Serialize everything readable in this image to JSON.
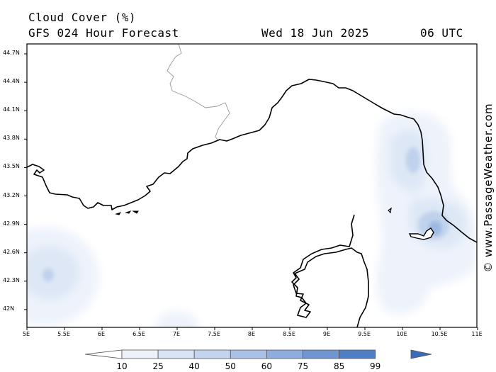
{
  "header": {
    "title": "Cloud Cover (%)",
    "subtitle": "GFS 024 Hour Forecast",
    "date": "Wed 18 Jun 2025",
    "time": "06 UTC"
  },
  "credit": "© www.PassageWeather.com",
  "map": {
    "lat_labels": [
      "44.7N",
      "44.4N",
      "44.1N",
      "43.8N",
      "43.5N",
      "43.2N",
      "42.9N",
      "42.6N",
      "42.3N",
      "42N"
    ],
    "lon_labels": [
      "5E",
      "5.5E",
      "6E",
      "6.5E",
      "7E",
      "7.5E",
      "8E",
      "8.5E",
      "9E",
      "9.5E",
      "10E",
      "10.5E",
      "11E"
    ],
    "land_color": "#ffffff",
    "coast_color": "#000000",
    "border_color": "#999999"
  },
  "legend": {
    "labels": [
      "10",
      "25",
      "40",
      "50",
      "60",
      "75",
      "85",
      "99"
    ],
    "colors": [
      "#ffffff",
      "#edf2fa",
      "#d9e4f4",
      "#c3d4ee",
      "#a9c1e6",
      "#8eadde",
      "#6f95d3",
      "#4f7ec6",
      "#3d6bb8"
    ]
  }
}
